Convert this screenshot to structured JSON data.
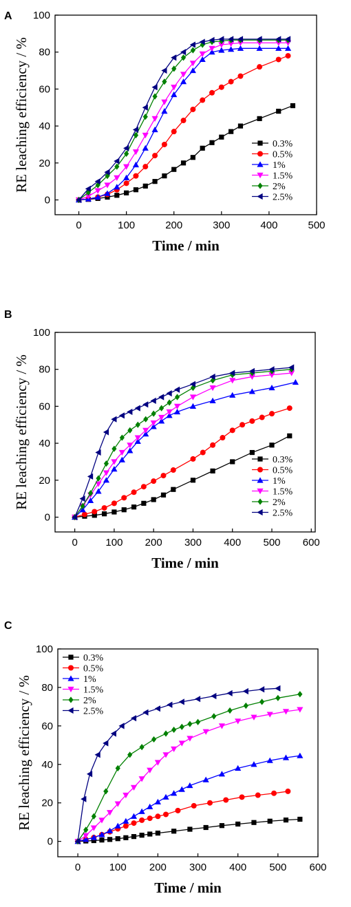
{
  "chart_data": [
    {
      "panel": "A",
      "type": "line",
      "xlabel": "Time / min",
      "ylabel": "RE leaching efficiency / %",
      "xlim": [
        -50,
        500
      ],
      "ylim": [
        -8,
        100
      ],
      "xticks": [
        0,
        100,
        200,
        300,
        400,
        500
      ],
      "yticks": [
        0,
        20,
        40,
        60,
        80,
        100
      ],
      "legend_position": "lower-right",
      "series": [
        {
          "name": "0.3%",
          "color": "#000000",
          "marker": "square",
          "x": [
            0,
            20,
            40,
            60,
            80,
            100,
            120,
            140,
            160,
            180,
            200,
            220,
            240,
            260,
            280,
            300,
            320,
            340,
            380,
            420,
            450
          ],
          "y": [
            0,
            0.3,
            0.8,
            1.5,
            2.5,
            3.8,
            5.5,
            7.5,
            10,
            13,
            16.5,
            20,
            23,
            28,
            31,
            34,
            37,
            40,
            44,
            48,
            51
          ]
        },
        {
          "name": "0.5%",
          "color": "#ff0000",
          "marker": "circle",
          "x": [
            0,
            20,
            40,
            60,
            80,
            100,
            120,
            140,
            160,
            180,
            200,
            220,
            240,
            260,
            280,
            300,
            320,
            340,
            380,
            420,
            440
          ],
          "y": [
            0,
            0.5,
            1.5,
            3,
            5.5,
            9,
            13,
            18,
            24,
            30,
            37,
            43,
            49,
            54,
            58,
            61,
            64,
            67,
            72,
            76,
            78
          ]
        },
        {
          "name": "1%",
          "color": "#0000ff",
          "marker": "triangle-up",
          "x": [
            0,
            20,
            40,
            60,
            80,
            100,
            120,
            140,
            160,
            180,
            200,
            220,
            240,
            260,
            280,
            300,
            320,
            340,
            380,
            420,
            440
          ],
          "y": [
            0,
            0.5,
            1.5,
            3.5,
            7,
            12,
            19,
            28,
            38,
            48,
            57,
            64,
            70,
            76,
            80,
            81,
            81.5,
            82,
            82,
            82,
            82
          ]
        },
        {
          "name": "1.5%",
          "color": "#ff00ff",
          "marker": "triangle-down",
          "x": [
            0,
            20,
            40,
            60,
            80,
            100,
            120,
            140,
            160,
            180,
            200,
            220,
            240,
            260,
            280,
            300,
            320,
            340,
            380,
            420,
            440
          ],
          "y": [
            0,
            2,
            5,
            8,
            12,
            18,
            26,
            35,
            44,
            53,
            61,
            68,
            74,
            79,
            82,
            84,
            84.5,
            85,
            85,
            85,
            85
          ]
        },
        {
          "name": "2%",
          "color": "#008000",
          "marker": "diamond",
          "x": [
            0,
            20,
            40,
            60,
            80,
            100,
            120,
            140,
            160,
            180,
            200,
            220,
            240,
            260,
            280,
            300,
            320,
            340,
            380,
            420,
            440
          ],
          "y": [
            0,
            4,
            8,
            13,
            18,
            25,
            35,
            45,
            56,
            64,
            71,
            77,
            81,
            84,
            85.5,
            86,
            86.5,
            86.5,
            86.5,
            86.5,
            86.5
          ]
        },
        {
          "name": "2.5%",
          "color": "#000080",
          "marker": "triangle-left",
          "x": [
            0,
            20,
            40,
            60,
            80,
            100,
            120,
            140,
            160,
            180,
            200,
            220,
            240,
            260,
            280,
            300,
            320,
            340,
            380,
            420,
            440
          ],
          "y": [
            0,
            6,
            10,
            15,
            21,
            28,
            38,
            50,
            61,
            70,
            77,
            80,
            84,
            85.5,
            86.5,
            87,
            87,
            87,
            87,
            87,
            87
          ]
        }
      ]
    },
    {
      "panel": "B",
      "type": "line",
      "xlabel": "Time / min",
      "ylabel": "RE leaching efficiency / %",
      "xlim": [
        -50,
        610
      ],
      "ylim": [
        -8,
        100
      ],
      "xticks": [
        0,
        100,
        200,
        300,
        400,
        500,
        600
      ],
      "yticks": [
        0,
        20,
        40,
        60,
        80,
        100
      ],
      "legend_position": "lower-right",
      "series": [
        {
          "name": "0.3%",
          "color": "#000000",
          "marker": "square",
          "x": [
            0,
            25,
            50,
            75,
            100,
            125,
            150,
            175,
            200,
            225,
            250,
            300,
            350,
            400,
            450,
            500,
            545
          ],
          "y": [
            0,
            0.5,
            1,
            1.8,
            2.8,
            4,
            5.5,
            7.5,
            9.5,
            12,
            15,
            20,
            25,
            30,
            35,
            39,
            44
          ]
        },
        {
          "name": "0.5%",
          "color": "#ff0000",
          "marker": "circle",
          "x": [
            0,
            25,
            50,
            75,
            100,
            125,
            150,
            175,
            200,
            225,
            250,
            300,
            325,
            350,
            375,
            400,
            425,
            450,
            475,
            500,
            545
          ],
          "y": [
            0,
            1.5,
            3,
            5,
            7.5,
            10.5,
            13.5,
            16.5,
            19.5,
            22.5,
            25.5,
            31.5,
            35,
            39,
            43,
            47,
            50,
            52,
            54,
            56,
            59
          ]
        },
        {
          "name": "1%",
          "color": "#0000ff",
          "marker": "triangle-up",
          "x": [
            0,
            20,
            40,
            60,
            80,
            100,
            120,
            140,
            160,
            180,
            200,
            220,
            240,
            260,
            300,
            350,
            400,
            450,
            500,
            560
          ],
          "y": [
            0,
            4,
            9,
            14,
            20,
            26,
            31,
            36,
            41,
            45,
            49,
            52,
            55,
            57,
            60,
            63,
            66,
            68,
            70,
            73
          ]
        },
        {
          "name": "1.5%",
          "color": "#ff00ff",
          "marker": "triangle-down",
          "x": [
            0,
            20,
            40,
            60,
            80,
            100,
            120,
            140,
            160,
            180,
            200,
            220,
            240,
            260,
            300,
            350,
            400,
            450,
            500,
            550
          ],
          "y": [
            0,
            6,
            12,
            18,
            24,
            30,
            35,
            39,
            43,
            47,
            51,
            54,
            57,
            60,
            65,
            70,
            74,
            76,
            77,
            78
          ]
        },
        {
          "name": "2%",
          "color": "#008000",
          "marker": "diamond",
          "x": [
            0,
            20,
            40,
            60,
            80,
            100,
            120,
            140,
            160,
            180,
            200,
            220,
            240,
            260,
            300,
            350,
            400,
            450,
            500,
            550
          ],
          "y": [
            0,
            6,
            13,
            21,
            29,
            37,
            43,
            47,
            50,
            53,
            56,
            59,
            62,
            65,
            70,
            74,
            77,
            78,
            79,
            80
          ]
        },
        {
          "name": "2.5%",
          "color": "#000080",
          "marker": "triangle-left",
          "x": [
            0,
            20,
            40,
            60,
            80,
            100,
            120,
            140,
            160,
            180,
            200,
            220,
            240,
            260,
            300,
            350,
            400,
            450,
            500,
            550
          ],
          "y": [
            0,
            10,
            22,
            35,
            46,
            53,
            55,
            57,
            59,
            61,
            63,
            65,
            67,
            69,
            72,
            76,
            78,
            79,
            80,
            81
          ]
        }
      ]
    },
    {
      "panel": "C",
      "type": "line",
      "xlabel": "Time / min",
      "ylabel": "RE leaching efficiency / %",
      "xlim": [
        -50,
        600
      ],
      "ylim": [
        -8,
        100
      ],
      "xticks": [
        0,
        100,
        200,
        300,
        400,
        500,
        600
      ],
      "yticks": [
        0,
        20,
        40,
        60,
        80,
        100
      ],
      "legend_position": "upper-left",
      "series": [
        {
          "name": "0.3%",
          "color": "#000000",
          "marker": "square",
          "x": [
            0,
            20,
            40,
            60,
            80,
            100,
            120,
            140,
            160,
            180,
            200,
            240,
            280,
            320,
            360,
            400,
            440,
            480,
            520,
            555
          ],
          "y": [
            0,
            0.2,
            0.4,
            0.7,
            1,
            1.4,
            1.9,
            2.5,
            3.2,
            3.8,
            4.3,
            5.3,
            6.3,
            7.2,
            8.2,
            9,
            9.8,
            10.5,
            11.1,
            11.5
          ]
        },
        {
          "name": "0.5%",
          "color": "#ff0000",
          "marker": "circle",
          "x": [
            0,
            20,
            40,
            60,
            80,
            100,
            120,
            140,
            160,
            180,
            200,
            220,
            250,
            290,
            330,
            370,
            410,
            450,
            490,
            525
          ],
          "y": [
            0,
            1,
            2,
            3.5,
            5,
            6.5,
            8,
            9.5,
            11,
            12,
            13,
            14,
            16,
            18.5,
            20,
            21.5,
            23,
            24,
            25,
            26
          ]
        },
        {
          "name": "1%",
          "color": "#0000ff",
          "marker": "triangle-up",
          "x": [
            0,
            20,
            40,
            60,
            80,
            100,
            120,
            140,
            160,
            180,
            200,
            220,
            240,
            260,
            280,
            320,
            360,
            400,
            440,
            480,
            520,
            555
          ],
          "y": [
            0,
            1,
            2,
            3.5,
            5.5,
            8,
            10.5,
            13,
            15.5,
            18,
            20.5,
            23,
            25,
            27,
            29,
            32,
            35,
            38,
            40,
            42,
            43.5,
            44.5
          ]
        },
        {
          "name": "1.5%",
          "color": "#ff00ff",
          "marker": "triangle-down",
          "x": [
            0,
            20,
            40,
            60,
            80,
            100,
            120,
            140,
            160,
            180,
            200,
            220,
            240,
            260,
            280,
            320,
            360,
            400,
            440,
            480,
            520,
            555
          ],
          "y": [
            0,
            3,
            7,
            11,
            15,
            19.5,
            24,
            28,
            32.5,
            37,
            41,
            45,
            48,
            51,
            53.5,
            57,
            60,
            62.5,
            64.5,
            66,
            67.5,
            68.5
          ]
        },
        {
          "name": "2%",
          "color": "#008000",
          "marker": "diamond",
          "x": [
            0,
            20,
            40,
            70,
            100,
            130,
            160,
            190,
            220,
            240,
            260,
            280,
            300,
            340,
            380,
            420,
            460,
            500,
            555
          ],
          "y": [
            0,
            6,
            13,
            26,
            38,
            45,
            49,
            53,
            56,
            58,
            59.5,
            61,
            62,
            65,
            68,
            70.5,
            72.5,
            74.5,
            76.5
          ]
        },
        {
          "name": "2.5%",
          "color": "#000080",
          "marker": "triangle-left",
          "x": [
            0,
            15,
            30,
            50,
            70,
            90,
            110,
            140,
            170,
            200,
            230,
            260,
            300,
            340,
            380,
            420,
            460,
            500
          ],
          "y": [
            0,
            22,
            35,
            45,
            51,
            56,
            60,
            64,
            67,
            69,
            71,
            72.5,
            74,
            75.5,
            77,
            78,
            79,
            79.5
          ]
        }
      ]
    }
  ]
}
